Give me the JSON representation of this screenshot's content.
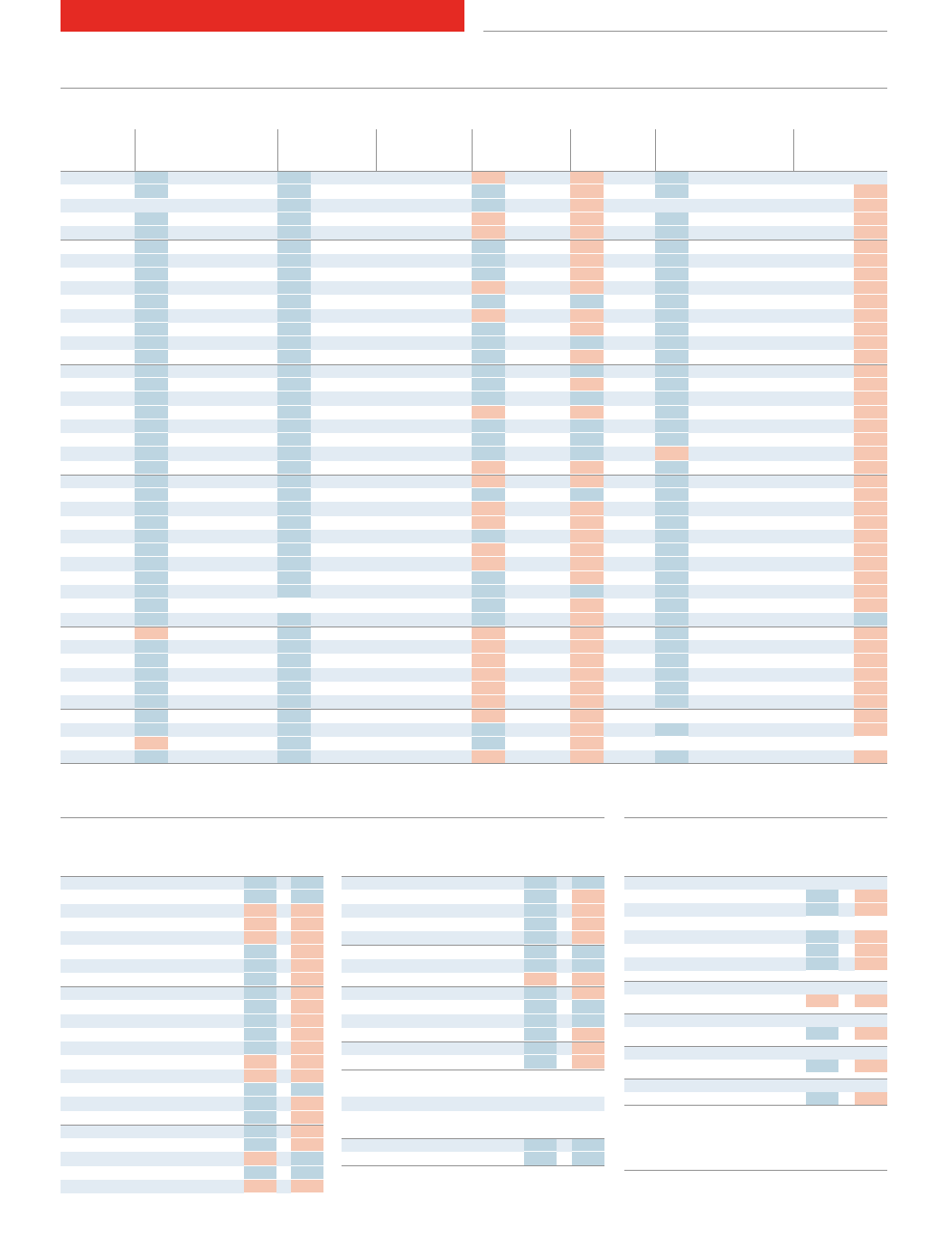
{
  "colors": {
    "banner": "#e52a23"
  },
  "palette": {
    "1": "#bdd5e1",
    "2": "#f6c7b2"
  },
  "main_table": {
    "groups": [
      {
        "rows": [
          {
            "shade": 1,
            "cells": [
              1,
              1,
              2,
              2,
              1,
              0
            ]
          },
          {
            "shade": 0,
            "cells": [
              1,
              1,
              1,
              2,
              1,
              2
            ]
          },
          {
            "shade": 1,
            "cells": [
              0,
              1,
              1,
              2,
              0,
              2
            ]
          },
          {
            "shade": 0,
            "cells": [
              1,
              1,
              2,
              2,
              1,
              2
            ]
          },
          {
            "shade": 1,
            "cells": [
              1,
              1,
              2,
              2,
              1,
              2
            ]
          }
        ]
      },
      {
        "rows": [
          {
            "shade": 0,
            "cells": [
              1,
              1,
              1,
              2,
              1,
              2
            ]
          },
          {
            "shade": 1,
            "cells": [
              1,
              1,
              1,
              2,
              1,
              2
            ]
          },
          {
            "shade": 0,
            "cells": [
              1,
              1,
              1,
              2,
              1,
              2
            ]
          },
          {
            "shade": 1,
            "cells": [
              1,
              1,
              2,
              2,
              1,
              2
            ]
          },
          {
            "shade": 0,
            "cells": [
              1,
              1,
              1,
              1,
              1,
              2
            ]
          },
          {
            "shade": 1,
            "cells": [
              1,
              1,
              2,
              2,
              1,
              2
            ]
          },
          {
            "shade": 0,
            "cells": [
              1,
              1,
              1,
              2,
              1,
              2
            ]
          },
          {
            "shade": 1,
            "cells": [
              1,
              1,
              1,
              1,
              1,
              2
            ]
          },
          {
            "shade": 0,
            "cells": [
              1,
              1,
              1,
              2,
              1,
              2
            ]
          }
        ]
      },
      {
        "rows": [
          {
            "shade": 1,
            "cells": [
              1,
              1,
              1,
              1,
              1,
              2
            ]
          },
          {
            "shade": 0,
            "cells": [
              1,
              1,
              1,
              2,
              1,
              2
            ]
          },
          {
            "shade": 1,
            "cells": [
              1,
              1,
              1,
              1,
              1,
              2
            ]
          },
          {
            "shade": 0,
            "cells": [
              1,
              1,
              2,
              2,
              1,
              2
            ]
          },
          {
            "shade": 1,
            "cells": [
              1,
              1,
              1,
              1,
              1,
              2
            ]
          },
          {
            "shade": 0,
            "cells": [
              1,
              1,
              1,
              1,
              1,
              2
            ]
          },
          {
            "shade": 1,
            "cells": [
              1,
              1,
              1,
              1,
              2,
              2
            ]
          },
          {
            "shade": 0,
            "cells": [
              1,
              1,
              2,
              2,
              1,
              2
            ]
          }
        ]
      },
      {
        "rows": [
          {
            "shade": 1,
            "cells": [
              1,
              1,
              2,
              2,
              1,
              2
            ]
          },
          {
            "shade": 0,
            "cells": [
              1,
              1,
              1,
              1,
              1,
              2
            ]
          },
          {
            "shade": 1,
            "cells": [
              1,
              1,
              2,
              2,
              1,
              2
            ]
          },
          {
            "shade": 0,
            "cells": [
              1,
              1,
              2,
              2,
              1,
              2
            ]
          },
          {
            "shade": 1,
            "cells": [
              1,
              1,
              1,
              2,
              1,
              2
            ]
          },
          {
            "shade": 0,
            "cells": [
              1,
              1,
              2,
              2,
              1,
              2
            ]
          },
          {
            "shade": 1,
            "cells": [
              1,
              1,
              2,
              2,
              1,
              2
            ]
          },
          {
            "shade": 0,
            "cells": [
              1,
              1,
              1,
              2,
              1,
              2
            ]
          },
          {
            "shade": 1,
            "cells": [
              1,
              1,
              1,
              1,
              1,
              2
            ]
          },
          {
            "shade": 0,
            "cells": [
              1,
              0,
              1,
              2,
              1,
              2
            ]
          },
          {
            "shade": 1,
            "cells": [
              1,
              1,
              1,
              2,
              1,
              1
            ]
          }
        ]
      },
      {
        "rows": [
          {
            "shade": 0,
            "cells": [
              2,
              1,
              2,
              2,
              1,
              2
            ]
          },
          {
            "shade": 1,
            "cells": [
              1,
              1,
              2,
              2,
              1,
              2
            ]
          },
          {
            "shade": 0,
            "cells": [
              1,
              1,
              2,
              2,
              1,
              2
            ]
          },
          {
            "shade": 1,
            "cells": [
              1,
              1,
              2,
              2,
              1,
              2
            ]
          },
          {
            "shade": 0,
            "cells": [
              1,
              1,
              2,
              2,
              1,
              2
            ]
          },
          {
            "shade": 1,
            "cells": [
              1,
              1,
              2,
              2,
              1,
              2
            ]
          }
        ]
      },
      {
        "rows": [
          {
            "shade": 0,
            "cells": [
              1,
              1,
              2,
              2,
              0,
              2
            ]
          },
          {
            "shade": 1,
            "cells": [
              1,
              1,
              1,
              2,
              1,
              2
            ]
          },
          {
            "shade": 0,
            "cells": [
              2,
              1,
              1,
              2,
              0,
              0
            ]
          },
          {
            "shade": 1,
            "cells": [
              1,
              1,
              2,
              2,
              1,
              2
            ]
          }
        ]
      }
    ]
  },
  "left_table": {
    "groups": [
      {
        "rows": [
          {
            "shade": 1,
            "cells": [
              1,
              1
            ]
          },
          {
            "shade": 0,
            "cells": [
              1,
              1
            ]
          },
          {
            "shade": 1,
            "cells": [
              2,
              2
            ]
          },
          {
            "shade": 0,
            "cells": [
              2,
              2
            ]
          },
          {
            "shade": 1,
            "cells": [
              2,
              2
            ]
          },
          {
            "shade": 0,
            "cells": [
              1,
              2
            ]
          },
          {
            "shade": 1,
            "cells": [
              1,
              2
            ]
          },
          {
            "shade": 0,
            "cells": [
              1,
              2
            ]
          }
        ]
      },
      {
        "rows": [
          {
            "shade": 1,
            "cells": [
              1,
              2
            ]
          },
          {
            "shade": 0,
            "cells": [
              1,
              2
            ]
          },
          {
            "shade": 1,
            "cells": [
              1,
              2
            ]
          },
          {
            "shade": 0,
            "cells": [
              1,
              2
            ]
          },
          {
            "shade": 1,
            "cells": [
              1,
              2
            ]
          },
          {
            "shade": 0,
            "cells": [
              2,
              2
            ]
          },
          {
            "shade": 1,
            "cells": [
              2,
              2
            ]
          },
          {
            "shade": 0,
            "cells": [
              1,
              1
            ]
          },
          {
            "shade": 1,
            "cells": [
              1,
              2
            ]
          },
          {
            "shade": 0,
            "cells": [
              1,
              2
            ]
          }
        ]
      },
      {
        "rows": [
          {
            "shade": 1,
            "cells": [
              1,
              2
            ]
          },
          {
            "shade": 0,
            "cells": [
              1,
              2
            ]
          },
          {
            "shade": 1,
            "cells": [
              2,
              1
            ]
          },
          {
            "shade": 0,
            "cells": [
              1,
              1
            ]
          },
          {
            "shade": 1,
            "cells": [
              2,
              2
            ]
          }
        ]
      }
    ]
  },
  "middle_table": {
    "groups": [
      {
        "rows": [
          {
            "shade": 1,
            "cells": [
              1,
              1
            ]
          },
          {
            "shade": 0,
            "cells": [
              1,
              2
            ]
          },
          {
            "shade": 1,
            "cells": [
              1,
              2
            ]
          },
          {
            "shade": 0,
            "cells": [
              1,
              2
            ]
          },
          {
            "shade": 1,
            "cells": [
              1,
              2
            ]
          }
        ]
      },
      {
        "rows": [
          {
            "shade": 0,
            "cells": [
              1,
              1
            ]
          },
          {
            "shade": 1,
            "cells": [
              1,
              1
            ]
          },
          {
            "shade": 0,
            "cells": [
              2,
              2
            ]
          }
        ]
      },
      {
        "rows": [
          {
            "shade": 1,
            "cells": [
              1,
              2
            ]
          },
          {
            "shade": 0,
            "cells": [
              1,
              1
            ]
          },
          {
            "shade": 1,
            "cells": [
              1,
              1
            ]
          },
          {
            "shade": 0,
            "cells": [
              1,
              2
            ]
          }
        ]
      },
      {
        "rows": [
          {
            "shade": 1,
            "cells": [
              1,
              2
            ]
          },
          {
            "shade": 0,
            "cells": [
              1,
              2
            ]
          }
        ]
      },
      {
        "rows": [
          {
            "shade": 0,
            "cells": [
              0,
              0
            ]
          },
          {
            "shade": 0,
            "cells": [
              0,
              0
            ]
          },
          {
            "shade": 1,
            "cells": [
              0,
              0
            ]
          },
          {
            "shade": 0,
            "cells": [
              0,
              0
            ]
          },
          {
            "shade": 0,
            "cells": [
              0,
              0
            ]
          }
        ]
      },
      {
        "rows": [
          {
            "shade": 1,
            "cells": [
              1,
              1
            ]
          },
          {
            "shade": 0,
            "cells": [
              1,
              1
            ]
          }
        ]
      }
    ]
  },
  "right_table": {
    "groups": [
      {
        "rows": [
          {
            "shade": 1,
            "cells": [
              0,
              0
            ]
          },
          {
            "shade": 0,
            "cells": [
              1,
              2
            ]
          },
          {
            "shade": 1,
            "cells": [
              1,
              2
            ]
          },
          {
            "shade": 0,
            "cells": [
              0,
              0
            ]
          },
          {
            "shade": 1,
            "cells": [
              1,
              2
            ]
          },
          {
            "shade": 0,
            "cells": [
              1,
              2
            ]
          },
          {
            "shade": 1,
            "cells": [
              1,
              2
            ]
          }
        ]
      },
      {
        "rows": [
          {
            "shade": 1,
            "cells": [
              0,
              0
            ]
          },
          {
            "shade": 0,
            "cells": [
              2,
              2
            ]
          }
        ]
      },
      {
        "rows": [
          {
            "shade": 1,
            "cells": [
              0,
              0
            ]
          },
          {
            "shade": 0,
            "cells": [
              1,
              2
            ]
          }
        ]
      },
      {
        "rows": [
          {
            "shade": 1,
            "cells": [
              0,
              0
            ]
          },
          {
            "shade": 0,
            "cells": [
              1,
              2
            ]
          }
        ]
      },
      {
        "rows": [
          {
            "shade": 1,
            "cells": [
              0,
              0
            ]
          },
          {
            "shade": 0,
            "cells": [
              1,
              2
            ]
          }
        ]
      }
    ]
  }
}
